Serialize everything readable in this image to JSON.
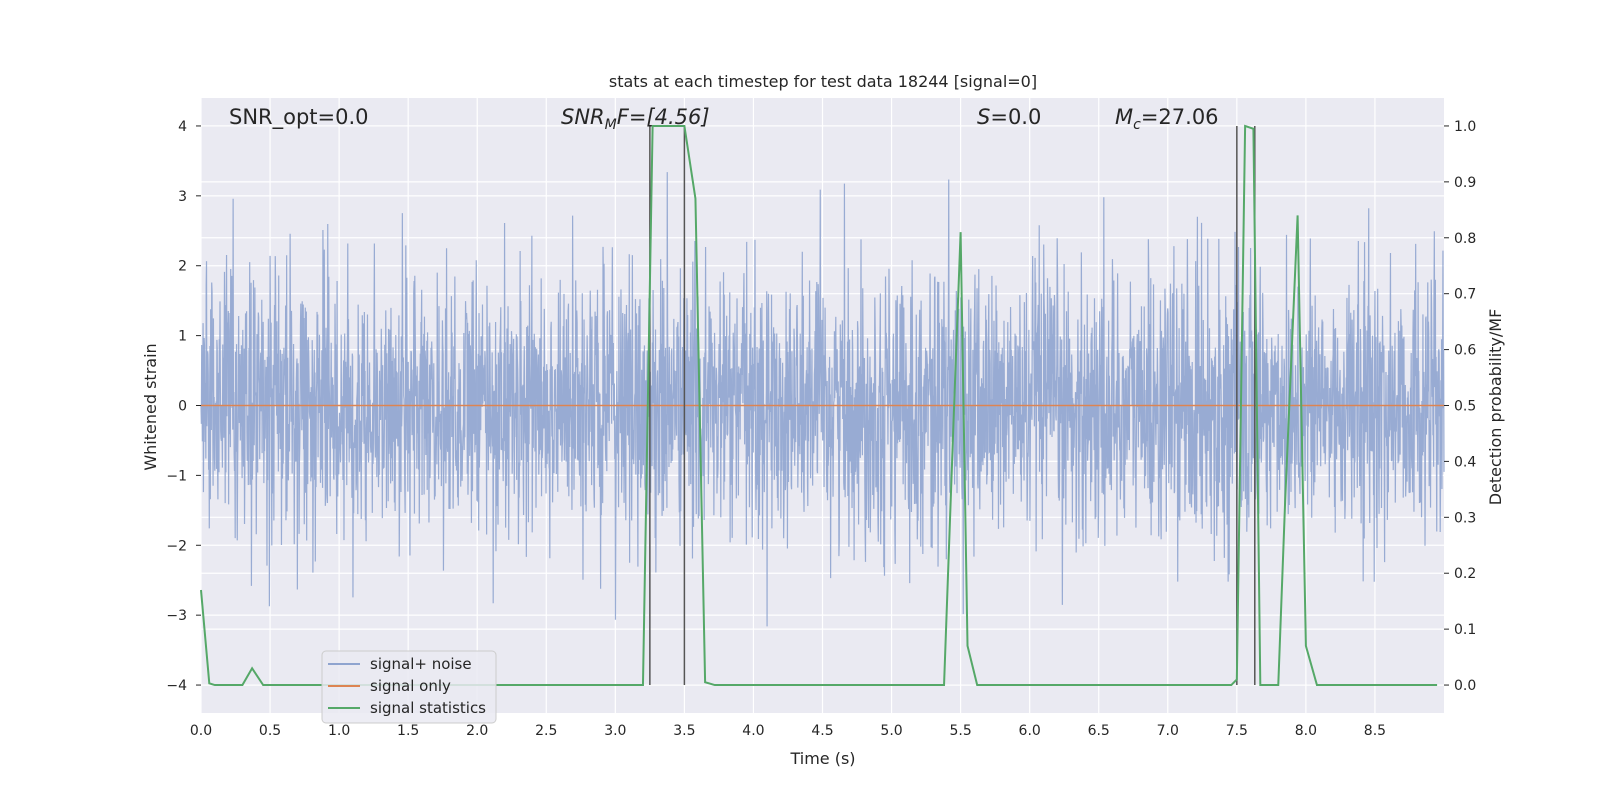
{
  "chart_data": {
    "type": "line",
    "title": "stats at each timestep for test data 18244 [signal=0]",
    "xlabel": "Time (s)",
    "ylabel_left": "Whitened strain",
    "ylabel_right": "Detection probability/MF",
    "xlim": [
      0.0,
      9.0
    ],
    "ylim_left": [
      -4.4,
      4.4
    ],
    "ylim_right": [
      -0.05,
      1.05
    ],
    "x_ticks": [
      "0.0",
      "0.5",
      "1.0",
      "1.5",
      "2.0",
      "2.5",
      "3.0",
      "3.5",
      "4.0",
      "4.5",
      "5.0",
      "5.5",
      "6.0",
      "6.5",
      "7.0",
      "7.5",
      "8.0",
      "8.5"
    ],
    "y_ticks_left": [
      "−4",
      "−3",
      "−2",
      "−1",
      "0",
      "1",
      "2",
      "3",
      "4"
    ],
    "y_ticks_right": [
      "0.0",
      "0.1",
      "0.2",
      "0.3",
      "0.4",
      "0.5",
      "0.6",
      "0.7",
      "0.8",
      "0.9",
      "1.0"
    ],
    "grid": true,
    "legend_position": "lower-left",
    "annotations": {
      "snr_opt": "SNR_opt=0.0",
      "snr_mf_main": "SNR",
      "snr_mf_sub": "M",
      "snr_mf_rest": "F=[4.56]",
      "s_main": "S",
      "s_rest": "=0.0",
      "mc_main": "M",
      "mc_sub": "c",
      "mc_rest": "=27.06"
    },
    "series": [
      {
        "name": "signal+ noise",
        "color": "#8fa4cf",
        "axis": "left",
        "description_values": "whitened noise, approx normal, std ~0.9"
      },
      {
        "name": "signal only",
        "color": "#dd8452",
        "axis": "left",
        "x": [
          0.0,
          9.0
        ],
        "y": [
          0.0,
          0.0
        ]
      },
      {
        "name": "signal statistics",
        "color": "#55a868",
        "axis": "right",
        "x": [
          0.0,
          0.06,
          0.1,
          0.3,
          0.37,
          0.45,
          1.0,
          2.0,
          3.0,
          3.2,
          3.27,
          3.5,
          3.58,
          3.65,
          3.72,
          4.0,
          5.0,
          5.38,
          5.45,
          5.5,
          5.55,
          5.62,
          6.0,
          6.7,
          7.0,
          7.46,
          7.5,
          7.56,
          7.62,
          7.67,
          7.75,
          7.8,
          7.85,
          7.94,
          8.0,
          8.08,
          8.5,
          8.95
        ],
        "y": [
          0.17,
          0.003,
          0.0,
          0.0,
          0.03,
          0.0,
          0.0,
          0.0,
          0.0,
          0.0,
          1.0,
          1.0,
          0.87,
          0.005,
          0.0,
          0.0,
          0.0,
          0.0,
          0.48,
          0.81,
          0.07,
          0.0,
          0.0,
          0.0,
          0.0,
          0.0,
          0.01,
          1.0,
          0.995,
          0.0,
          0.0,
          0.0,
          0.33,
          0.84,
          0.07,
          0.0,
          0.0,
          0.0
        ]
      }
    ],
    "vertical_lines": {
      "color": "#555555",
      "x": [
        3.25,
        3.5,
        7.5,
        7.63
      ]
    }
  }
}
